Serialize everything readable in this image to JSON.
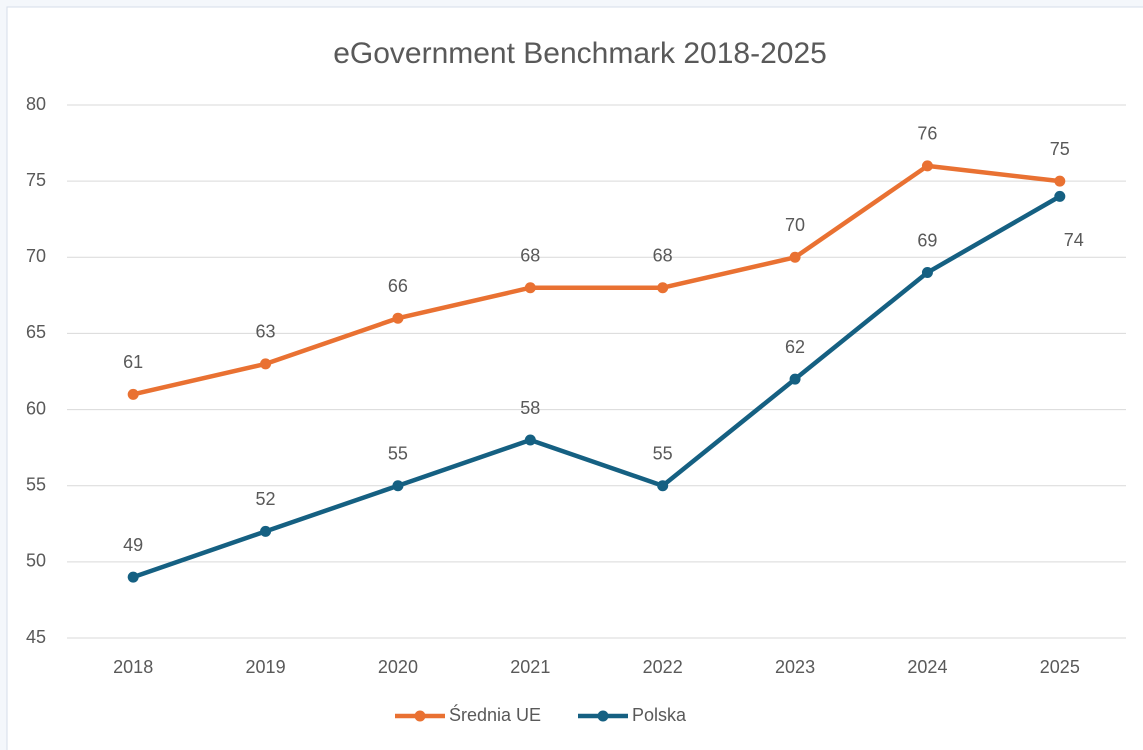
{
  "chart_data": {
    "type": "line",
    "title": "eGovernment Benchmark 2018-2025",
    "categories": [
      "2018",
      "2019",
      "2020",
      "2021",
      "2022",
      "2023",
      "2024",
      "2025"
    ],
    "series": [
      {
        "name": "Średnia UE",
        "color": "#e97132",
        "values": [
          61,
          63,
          66,
          68,
          68,
          70,
          76,
          75
        ]
      },
      {
        "name": "Polska",
        "color": "#156082",
        "values": [
          49,
          52,
          55,
          58,
          55,
          62,
          69,
          74
        ]
      }
    ],
    "ylim": [
      45,
      80
    ],
    "yticks": [
      45,
      50,
      55,
      60,
      65,
      70,
      75,
      80
    ],
    "grid": true,
    "legend": "bottom"
  }
}
